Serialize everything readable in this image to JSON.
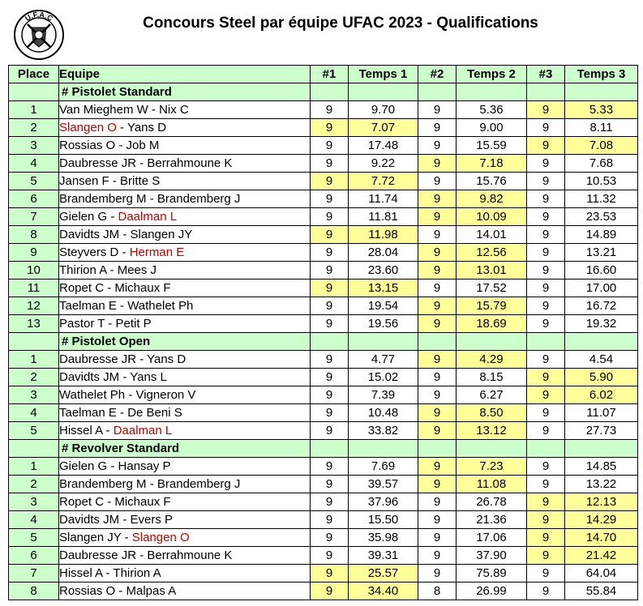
{
  "title": "Concours Steel par équipe UFAC 2023 - Qualifications",
  "logo": {
    "text": "U.F.A.C",
    "icon": "ufac-seal-logo"
  },
  "colors": {
    "header_bg": "#ccffcc",
    "best_bg": "#ffff99",
    "red_name": "#c00000"
  },
  "headers": [
    "Place",
    "Equipe",
    "#1",
    "Temps 1",
    "#2",
    "Temps 2",
    "#3",
    "Temps 3"
  ],
  "sections": [
    {
      "name": "# Pistolet Standard",
      "rows": [
        {
          "place": "1",
          "team": [
            {
              "t": "Van Mieghem W - Nix C",
              "red": false
            }
          ],
          "n1": "9",
          "t1": "9.70",
          "n2": "9",
          "t2": "5.36",
          "n3": "9",
          "t3": "5.33",
          "best": 3
        },
        {
          "place": "2",
          "team": [
            {
              "t": "Slangen O",
              "red": true
            },
            {
              "t": " - Yans D",
              "red": false
            }
          ],
          "n1": "9",
          "t1": "7.07",
          "n2": "9",
          "t2": "9.00",
          "n3": "9",
          "t3": "8.11",
          "best": 1
        },
        {
          "place": "3",
          "team": [
            {
              "t": "Rossias O - Job M",
              "red": false
            }
          ],
          "n1": "9",
          "t1": "17.48",
          "n2": "9",
          "t2": "15.59",
          "n3": "9",
          "t3": "7.08",
          "best": 3
        },
        {
          "place": "4",
          "team": [
            {
              "t": "Daubresse JR - Berrahmoune K",
              "red": false
            }
          ],
          "n1": "9",
          "t1": "9.22",
          "n2": "9",
          "t2": "7.18",
          "n3": "9",
          "t3": "7.68",
          "best": 2
        },
        {
          "place": "5",
          "team": [
            {
              "t": "Jansen F - Britte S",
              "red": false
            }
          ],
          "n1": "9",
          "t1": "7.72",
          "n2": "9",
          "t2": "15.76",
          "n3": "9",
          "t3": "10.53",
          "best": 1
        },
        {
          "place": "6",
          "team": [
            {
              "t": "Brandemberg M - Brandemberg J",
              "red": false
            }
          ],
          "n1": "9",
          "t1": "11.74",
          "n2": "9",
          "t2": "9.82",
          "n3": "9",
          "t3": "11.32",
          "best": 2
        },
        {
          "place": "7",
          "team": [
            {
              "t": "Gielen G - ",
              "red": false
            },
            {
              "t": "Daalman L",
              "red": true
            }
          ],
          "n1": "9",
          "t1": "11.81",
          "n2": "9",
          "t2": "10.09",
          "n3": "9",
          "t3": "23.53",
          "best": 2
        },
        {
          "place": "8",
          "team": [
            {
              "t": "Davidts JM - Slangen JY",
              "red": false
            }
          ],
          "n1": "9",
          "t1": "11.98",
          "n2": "9",
          "t2": "14.01",
          "n3": "9",
          "t3": "14.89",
          "best": 1
        },
        {
          "place": "9",
          "team": [
            {
              "t": "Steyvers D - ",
              "red": false
            },
            {
              "t": "Herman E",
              "red": true
            }
          ],
          "n1": "9",
          "t1": "28.04",
          "n2": "9",
          "t2": "12.56",
          "n3": "9",
          "t3": "13.21",
          "best": 2
        },
        {
          "place": "10",
          "team": [
            {
              "t": "Thirion A - Mees J",
              "red": false
            }
          ],
          "n1": "9",
          "t1": "23.60",
          "n2": "9",
          "t2": "13.01",
          "n3": "9",
          "t3": "16.60",
          "best": 2
        },
        {
          "place": "11",
          "team": [
            {
              "t": "Ropet C - Michaux F",
              "red": false
            }
          ],
          "n1": "9",
          "t1": "13.15",
          "n2": "9",
          "t2": "17.52",
          "n3": "9",
          "t3": "17.00",
          "best": 1
        },
        {
          "place": "12",
          "team": [
            {
              "t": "Taelman E - Wathelet Ph",
              "red": false
            }
          ],
          "n1": "9",
          "t1": "19.54",
          "n2": "9",
          "t2": "15.79",
          "n3": "9",
          "t3": "16.72",
          "best": 2
        },
        {
          "place": "13",
          "team": [
            {
              "t": "Pastor T - Petit P",
              "red": false
            }
          ],
          "n1": "9",
          "t1": "19.56",
          "n2": "9",
          "t2": "18.69",
          "n3": "9",
          "t3": "19.32",
          "best": 2
        }
      ]
    },
    {
      "name": "# Pistolet Open",
      "rows": [
        {
          "place": "1",
          "team": [
            {
              "t": "Daubresse JR - Yans D",
              "red": false
            }
          ],
          "n1": "9",
          "t1": "4.77",
          "n2": "9",
          "t2": "4.29",
          "n3": "9",
          "t3": "4.54",
          "best": 2
        },
        {
          "place": "2",
          "team": [
            {
              "t": "Davidts JM - Yans L",
              "red": false
            }
          ],
          "n1": "9",
          "t1": "15.02",
          "n2": "9",
          "t2": "8.15",
          "n3": "9",
          "t3": "5.90",
          "best": 3
        },
        {
          "place": "3",
          "team": [
            {
              "t": "Wathelet Ph - Vigneron V",
              "red": false
            }
          ],
          "n1": "9",
          "t1": "7.39",
          "n2": "9",
          "t2": "6.27",
          "n3": "9",
          "t3": "6.02",
          "best": 3
        },
        {
          "place": "4",
          "team": [
            {
              "t": "Taelman E - De Beni S",
              "red": false
            }
          ],
          "n1": "9",
          "t1": "10.48",
          "n2": "9",
          "t2": "8.50",
          "n3": "9",
          "t3": "11.07",
          "best": 2
        },
        {
          "place": "5",
          "team": [
            {
              "t": "Hissel A - ",
              "red": false
            },
            {
              "t": "Daalman L",
              "red": true
            }
          ],
          "n1": "9",
          "t1": "33.82",
          "n2": "9",
          "t2": "13.12",
          "n3": "9",
          "t3": "27.73",
          "best": 2
        }
      ]
    },
    {
      "name": "# Revolver Standard",
      "rows": [
        {
          "place": "1",
          "team": [
            {
              "t": "Gielen G - Hansay P",
              "red": false
            }
          ],
          "n1": "9",
          "t1": "7.69",
          "n2": "9",
          "t2": "7.23",
          "n3": "9",
          "t3": "14.85",
          "best": 2
        },
        {
          "place": "2",
          "team": [
            {
              "t": "Brandemberg M - Brandemberg J",
              "red": false
            }
          ],
          "n1": "9",
          "t1": "39.57",
          "n2": "9",
          "t2": "11.08",
          "n3": "9",
          "t3": "13.22",
          "best": 2
        },
        {
          "place": "3",
          "team": [
            {
              "t": "Ropet C - Michaux F",
              "red": false
            }
          ],
          "n1": "9",
          "t1": "37.96",
          "n2": "9",
          "t2": "26.78",
          "n3": "9",
          "t3": "12.13",
          "best": 3
        },
        {
          "place": "4",
          "team": [
            {
              "t": "Davidts JM - Evers P",
              "red": false
            }
          ],
          "n1": "9",
          "t1": "15.50",
          "n2": "9",
          "t2": "21.36",
          "n3": "9",
          "t3": "14.29",
          "best": 3
        },
        {
          "place": "5",
          "team": [
            {
              "t": "Slangen JY - ",
              "red": false
            },
            {
              "t": "Slangen O",
              "red": true
            }
          ],
          "n1": "9",
          "t1": "35.98",
          "n2": "9",
          "t2": "17.06",
          "n3": "9",
          "t3": "14.70",
          "best": 3
        },
        {
          "place": "6",
          "team": [
            {
              "t": "Daubresse JR - Berrahmoune K",
              "red": false
            }
          ],
          "n1": "9",
          "t1": "39.31",
          "n2": "9",
          "t2": "37.90",
          "n3": "9",
          "t3": "21.42",
          "best": 3
        },
        {
          "place": "7",
          "team": [
            {
              "t": "Hissel A - Thirion A",
              "red": false
            }
          ],
          "n1": "9",
          "t1": "25.57",
          "n2": "9",
          "t2": "75.89",
          "n3": "9",
          "t3": "64.04",
          "best": 1
        },
        {
          "place": "8",
          "team": [
            {
              "t": "Rossias O - Malpas A",
              "red": false
            }
          ],
          "n1": "9",
          "t1": "34.40",
          "n2": "8",
          "t2": "26.99",
          "n3": "9",
          "t3": "55.84",
          "best": 1
        }
      ]
    }
  ]
}
